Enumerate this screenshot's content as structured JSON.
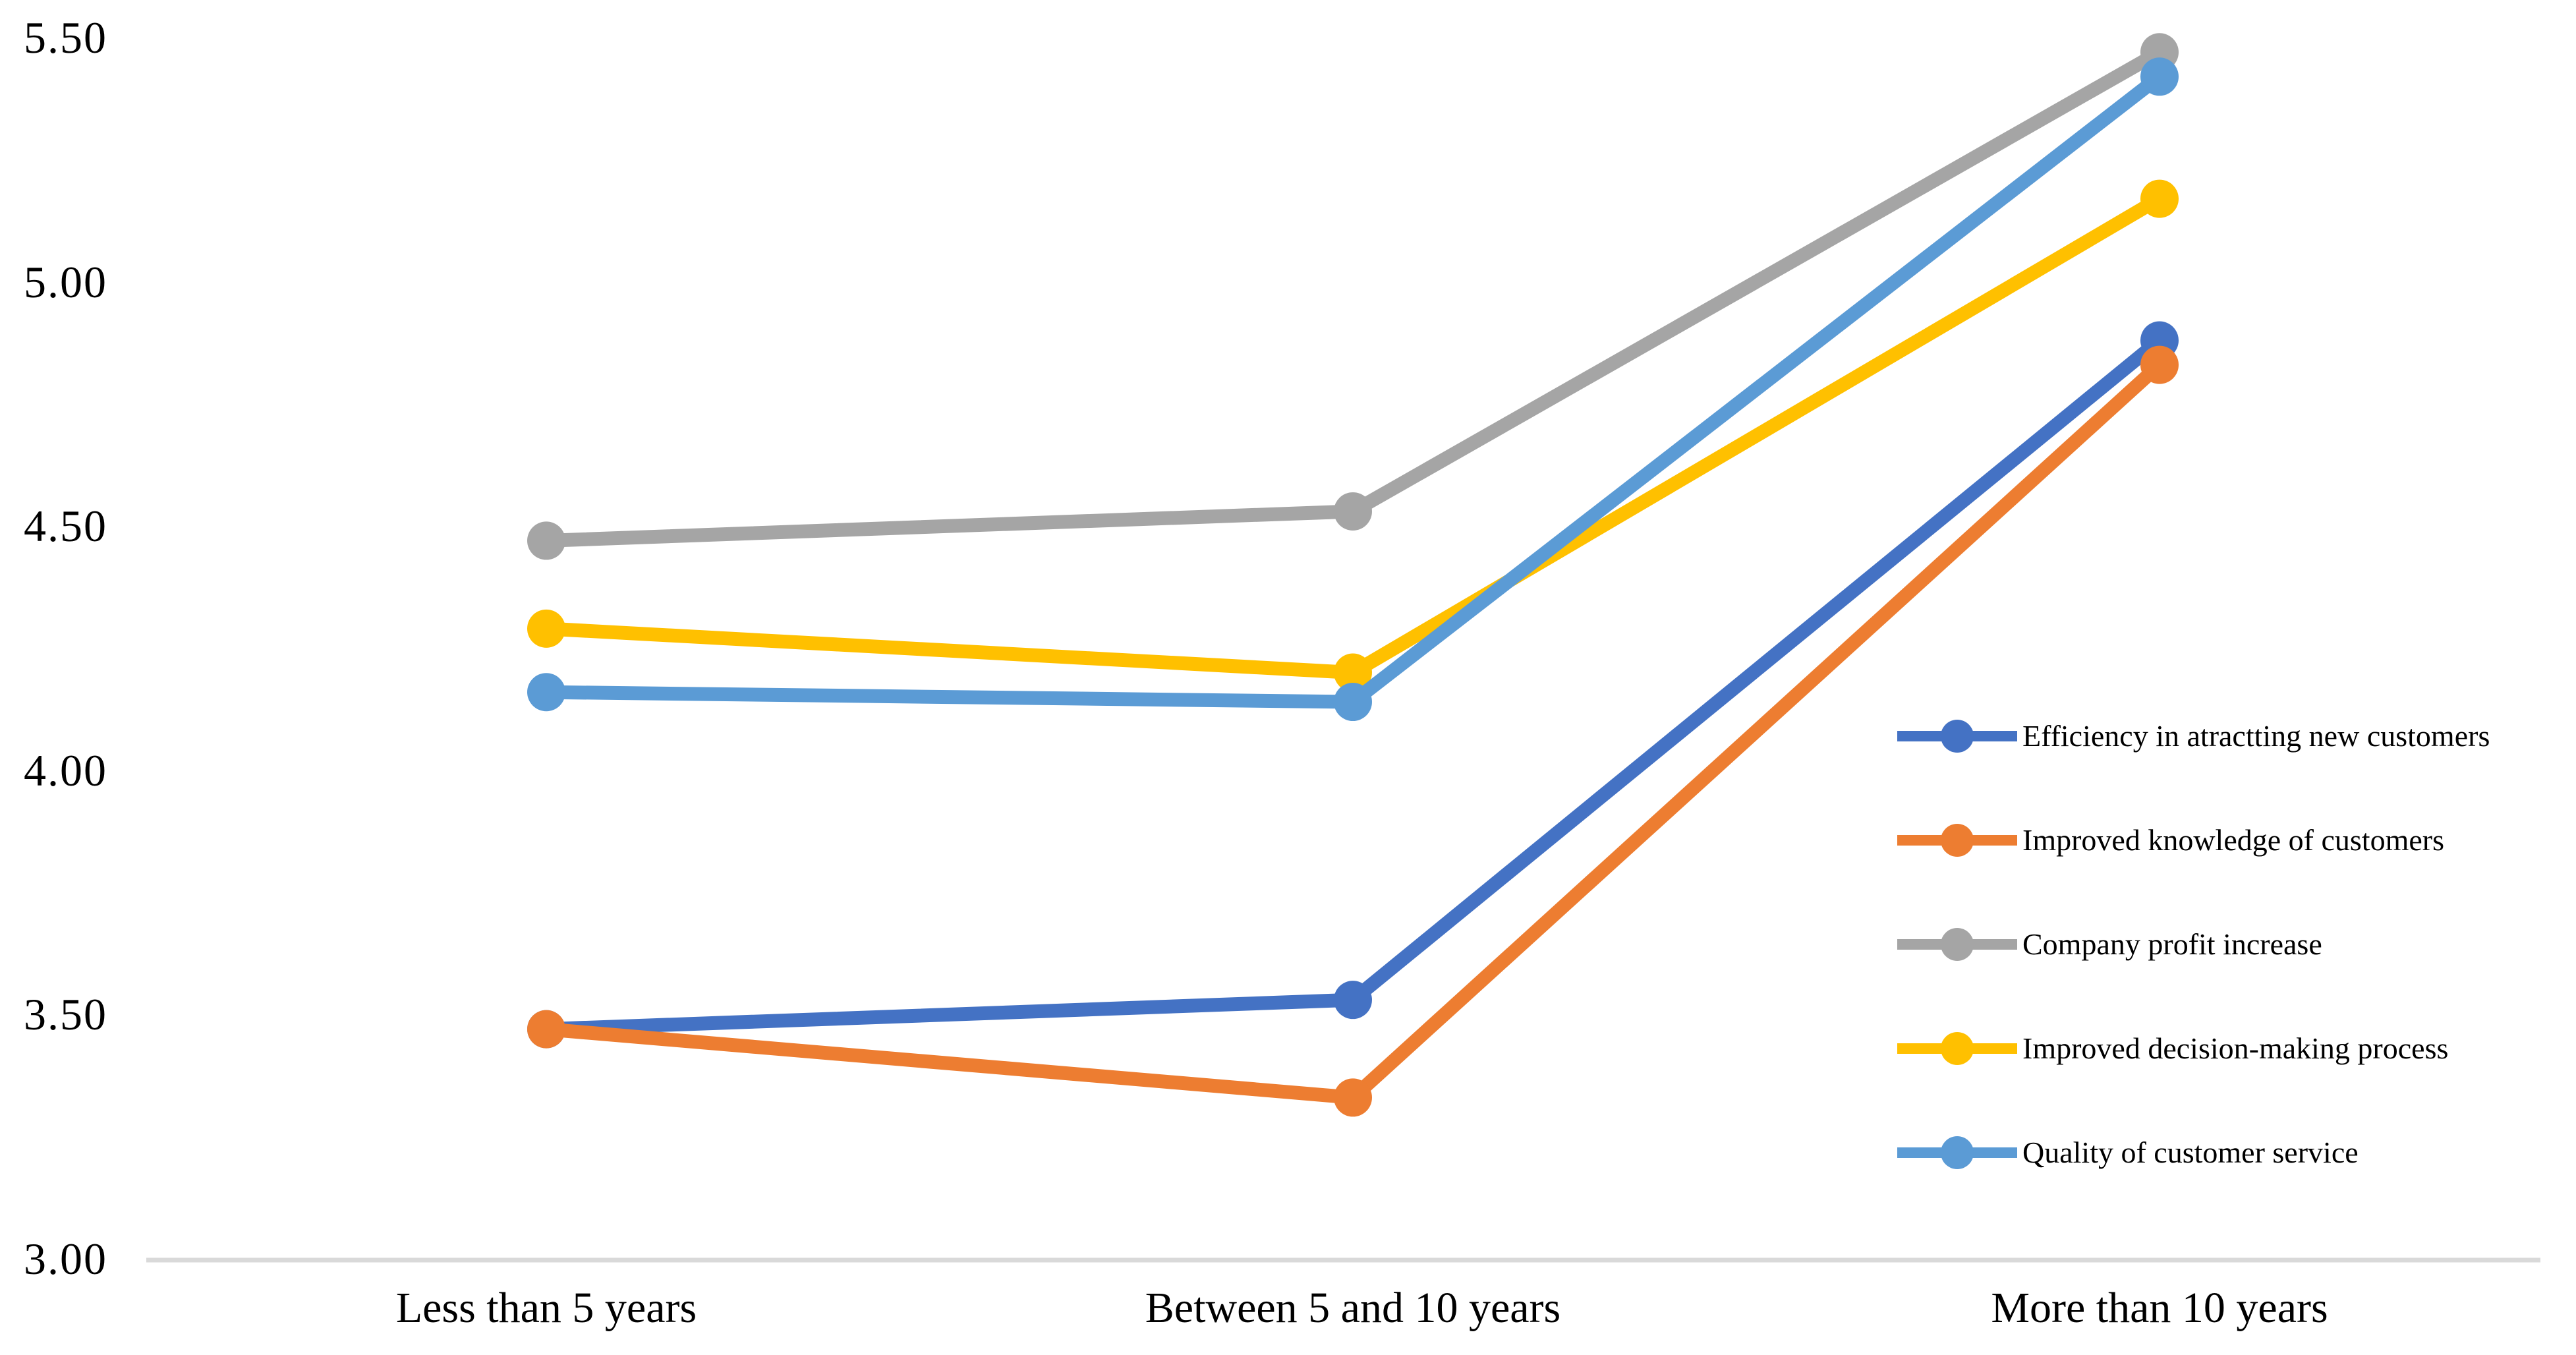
{
  "chart_data": {
    "type": "line",
    "title": "",
    "xlabel": "",
    "ylabel": "",
    "grid": "off",
    "legend_position": "middle-right",
    "categories": [
      "Less than 5 years",
      "Between 5 and 10 years",
      "More than 10 years"
    ],
    "series": [
      {
        "name": "Efficiency in atractting new customers",
        "color": "#4472C4",
        "values": [
          3.47,
          3.53,
          4.88
        ]
      },
      {
        "name": "Improved knowledge of customers",
        "color": "#ED7D31",
        "values": [
          3.47,
          3.33,
          4.83
        ]
      },
      {
        "name": "Company profit increase",
        "color": "#A5A5A5",
        "values": [
          4.47,
          4.53,
          5.47
        ]
      },
      {
        "name": "Improved decision-making process",
        "color": "#FFC000",
        "values": [
          4.29,
          4.2,
          5.17
        ]
      },
      {
        "name": "Quality of customer service",
        "color": "#5B9BD5",
        "values": [
          4.16,
          4.14,
          5.42
        ]
      }
    ],
    "y_axis": {
      "min": 3.0,
      "max": 5.5,
      "step": 0.5,
      "tick_labels": [
        "5.50",
        "5.00",
        "4.50",
        "4.00",
        "3.50",
        "3.00"
      ]
    },
    "axis_line_color": "#D9D9D9",
    "text_color": "#000000"
  }
}
